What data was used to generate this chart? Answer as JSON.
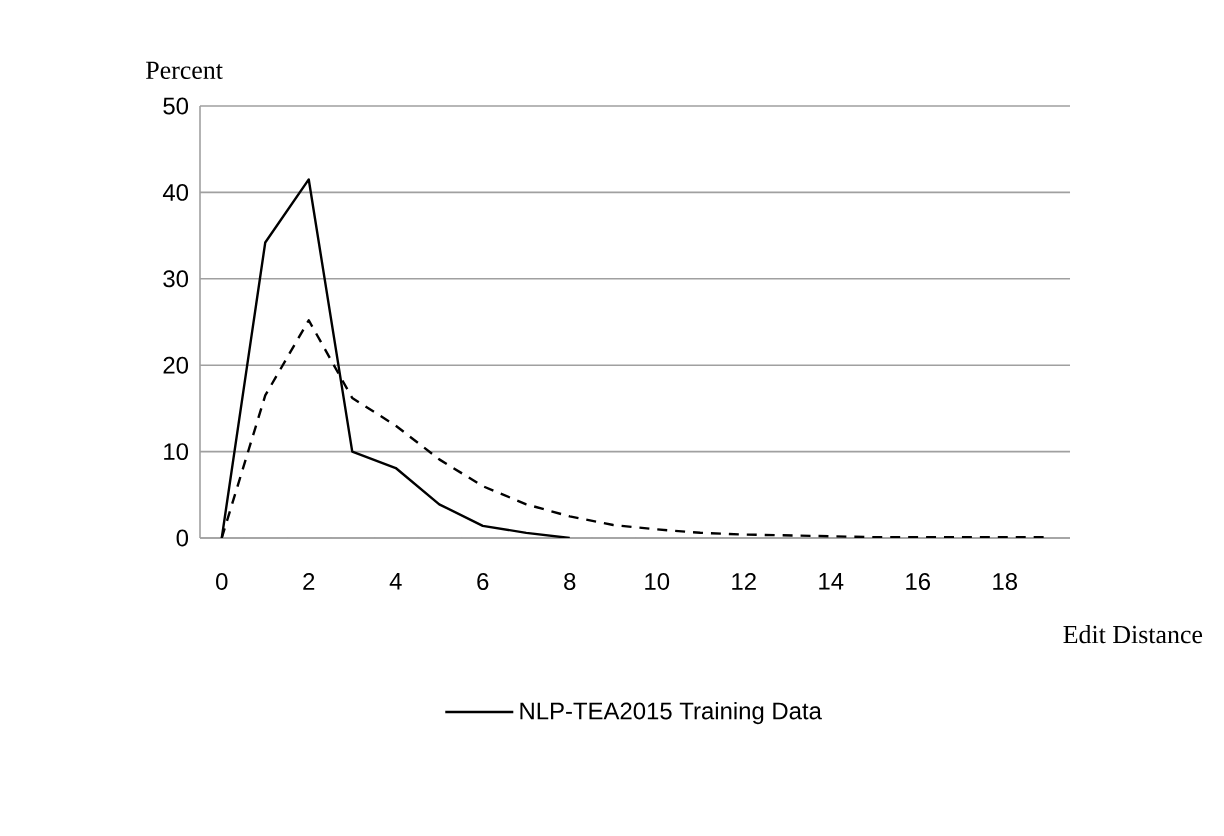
{
  "chart_data": {
    "type": "line",
    "ylabel": "Percent",
    "xlabel": "Edit Distance",
    "categories": [
      "0",
      null,
      "2",
      null,
      "4",
      null,
      "6",
      null,
      "8",
      null,
      "10",
      null,
      "12",
      null,
      "14",
      null,
      "16",
      null,
      "18",
      null
    ],
    "ylim": [
      0,
      50
    ],
    "yticks": [
      0,
      10,
      20,
      30,
      40,
      50
    ],
    "grid": "y",
    "legend": "bottom",
    "marker": "none",
    "series": [
      {
        "name": "NLP-TEA2015 Training Data",
        "color": "#000000",
        "line_style": "solid",
        "values": [
          0,
          34.2,
          41.5,
          10.0,
          8.1,
          3.9,
          1.4,
          0.6,
          0,
          null,
          null,
          null,
          null,
          null,
          null,
          null,
          null,
          null,
          null,
          null
        ]
      },
      {
        "color": "#000000",
        "line_style": "dashed",
        "values": [
          0,
          16.5,
          25.2,
          16.2,
          13.0,
          9.1,
          6.0,
          3.9,
          2.5,
          1.5,
          1.0,
          0.6,
          0.4,
          0.3,
          0.2,
          0.1,
          0.1,
          0.1,
          0.1,
          0.1
        ]
      }
    ]
  }
}
